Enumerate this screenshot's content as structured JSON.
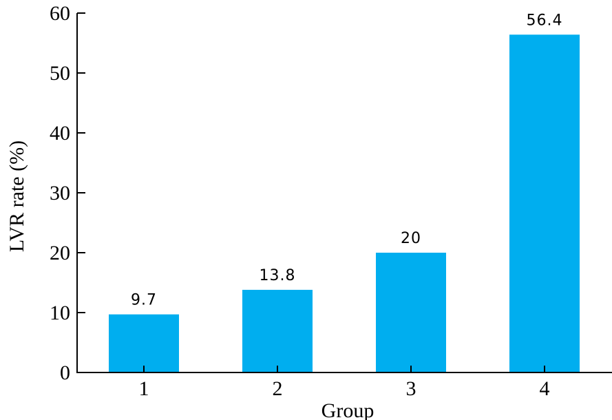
{
  "chart_data": {
    "type": "bar",
    "title": "",
    "xlabel": "Group",
    "ylabel": "LVR rate (%)",
    "categories": [
      "1",
      "2",
      "3",
      "4"
    ],
    "values": [
      9.7,
      13.8,
      20,
      56.4
    ],
    "data_labels": [
      "9.7",
      "13.8",
      "20",
      "56.4"
    ],
    "ylim": [
      0,
      60
    ],
    "yticks": [
      "0",
      "10",
      "20",
      "30",
      "40",
      "50",
      "60"
    ],
    "grid": false,
    "legend": "none",
    "bar_color": "#00AEEF"
  }
}
